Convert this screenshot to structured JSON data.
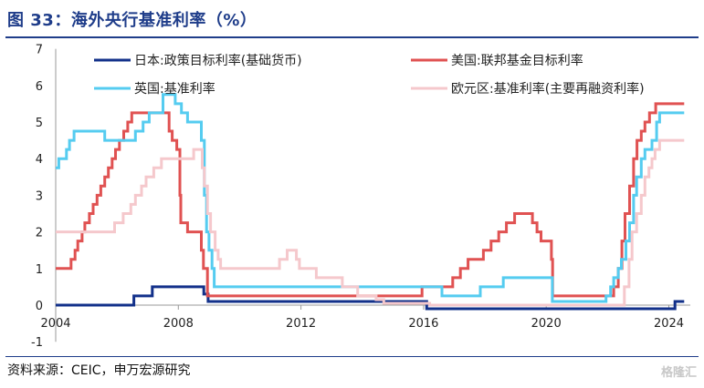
{
  "header": {
    "title": "图 33：海外央行基准利率（%）"
  },
  "footer": {
    "source": "资料来源：CEIC，申万宏源研究",
    "watermark": "格隆汇"
  },
  "chart_data": {
    "type": "line",
    "xlim": [
      2004,
      2024.7
    ],
    "ylim": [
      -1,
      7
    ],
    "x_ticks": [
      "2004",
      "2008",
      "2012",
      "2016",
      "2020",
      "2024"
    ],
    "y_ticks": [
      "-1",
      "0",
      "1",
      "2",
      "3",
      "4",
      "5",
      "6",
      "7"
    ],
    "grid": false,
    "legend": "top",
    "series": [
      {
        "name": "日本:政策目标利率(基础货币)",
        "color": "#12308a",
        "points": [
          [
            2004.0,
            0
          ],
          [
            2006.55,
            0
          ],
          [
            2006.55,
            0.25
          ],
          [
            2007.15,
            0.25
          ],
          [
            2007.15,
            0.5
          ],
          [
            2008.83,
            0.5
          ],
          [
            2008.83,
            0.3
          ],
          [
            2008.97,
            0.3
          ],
          [
            2008.97,
            0.1
          ],
          [
            2016.1,
            0.1
          ],
          [
            2016.1,
            -0.1
          ],
          [
            2024.2,
            -0.1
          ],
          [
            2024.2,
            0.1
          ],
          [
            2024.5,
            0.1
          ]
        ]
      },
      {
        "name": "美国:联邦基金目标利率",
        "color": "#e05252",
        "points": [
          [
            2004.0,
            1
          ],
          [
            2004.5,
            1
          ],
          [
            2004.5,
            1.25
          ],
          [
            2004.63,
            1.25
          ],
          [
            2004.63,
            1.5
          ],
          [
            2004.72,
            1.5
          ],
          [
            2004.72,
            1.75
          ],
          [
            2004.86,
            1.75
          ],
          [
            2004.86,
            2
          ],
          [
            2004.95,
            2
          ],
          [
            2004.95,
            2.25
          ],
          [
            2005.1,
            2.25
          ],
          [
            2005.1,
            2.5
          ],
          [
            2005.22,
            2.5
          ],
          [
            2005.22,
            2.75
          ],
          [
            2005.35,
            2.75
          ],
          [
            2005.35,
            3
          ],
          [
            2005.47,
            3
          ],
          [
            2005.47,
            3.25
          ],
          [
            2005.6,
            3.25
          ],
          [
            2005.6,
            3.5
          ],
          [
            2005.72,
            3.5
          ],
          [
            2005.72,
            3.75
          ],
          [
            2005.84,
            3.75
          ],
          [
            2005.84,
            4
          ],
          [
            2005.95,
            4
          ],
          [
            2005.95,
            4.25
          ],
          [
            2006.08,
            4.25
          ],
          [
            2006.08,
            4.5
          ],
          [
            2006.22,
            4.5
          ],
          [
            2006.22,
            4.75
          ],
          [
            2006.35,
            4.75
          ],
          [
            2006.35,
            5
          ],
          [
            2006.48,
            5
          ],
          [
            2006.48,
            5.25
          ],
          [
            2007.7,
            5.25
          ],
          [
            2007.7,
            4.75
          ],
          [
            2007.8,
            4.75
          ],
          [
            2007.8,
            4.5
          ],
          [
            2007.95,
            4.5
          ],
          [
            2007.95,
            4.25
          ],
          [
            2008.05,
            4.25
          ],
          [
            2008.05,
            3
          ],
          [
            2008.08,
            3
          ],
          [
            2008.08,
            2.25
          ],
          [
            2008.3,
            2.25
          ],
          [
            2008.3,
            2
          ],
          [
            2008.75,
            2
          ],
          [
            2008.75,
            1.5
          ],
          [
            2008.82,
            1.5
          ],
          [
            2008.82,
            1
          ],
          [
            2008.95,
            1
          ],
          [
            2008.95,
            0.25
          ],
          [
            2015.95,
            0.25
          ],
          [
            2015.95,
            0.5
          ],
          [
            2016.95,
            0.5
          ],
          [
            2016.95,
            0.75
          ],
          [
            2017.2,
            0.75
          ],
          [
            2017.2,
            1
          ],
          [
            2017.45,
            1
          ],
          [
            2017.45,
            1.25
          ],
          [
            2017.95,
            1.25
          ],
          [
            2017.95,
            1.5
          ],
          [
            2018.2,
            1.5
          ],
          [
            2018.2,
            1.75
          ],
          [
            2018.45,
            1.75
          ],
          [
            2018.45,
            2
          ],
          [
            2018.7,
            2
          ],
          [
            2018.7,
            2.25
          ],
          [
            2018.97,
            2.25
          ],
          [
            2018.97,
            2.5
          ],
          [
            2019.55,
            2.5
          ],
          [
            2019.55,
            2.25
          ],
          [
            2019.7,
            2.25
          ],
          [
            2019.7,
            2
          ],
          [
            2019.83,
            2
          ],
          [
            2019.83,
            1.75
          ],
          [
            2020.17,
            1.75
          ],
          [
            2020.17,
            1.25
          ],
          [
            2020.21,
            1.25
          ],
          [
            2020.21,
            0.25
          ],
          [
            2022.2,
            0.25
          ],
          [
            2022.2,
            0.5
          ],
          [
            2022.35,
            0.5
          ],
          [
            2022.35,
            1
          ],
          [
            2022.47,
            1
          ],
          [
            2022.47,
            1.75
          ],
          [
            2022.57,
            1.75
          ],
          [
            2022.57,
            2.5
          ],
          [
            2022.72,
            2.5
          ],
          [
            2022.72,
            3.25
          ],
          [
            2022.85,
            3.25
          ],
          [
            2022.85,
            4
          ],
          [
            2022.96,
            4
          ],
          [
            2022.96,
            4.5
          ],
          [
            2023.1,
            4.5
          ],
          [
            2023.1,
            4.75
          ],
          [
            2023.22,
            4.75
          ],
          [
            2023.22,
            5
          ],
          [
            2023.37,
            5
          ],
          [
            2023.37,
            5.25
          ],
          [
            2023.57,
            5.25
          ],
          [
            2023.57,
            5.5
          ],
          [
            2024.5,
            5.5
          ]
        ]
      },
      {
        "name": "英国:基准利率",
        "color": "#55ccf0",
        "points": [
          [
            2004.0,
            3.75
          ],
          [
            2004.1,
            3.75
          ],
          [
            2004.1,
            4
          ],
          [
            2004.35,
            4
          ],
          [
            2004.35,
            4.25
          ],
          [
            2004.45,
            4.25
          ],
          [
            2004.45,
            4.5
          ],
          [
            2004.6,
            4.5
          ],
          [
            2004.6,
            4.75
          ],
          [
            2005.6,
            4.75
          ],
          [
            2005.6,
            4.5
          ],
          [
            2006.6,
            4.5
          ],
          [
            2006.6,
            4.75
          ],
          [
            2006.85,
            4.75
          ],
          [
            2006.85,
            5
          ],
          [
            2007.05,
            5
          ],
          [
            2007.05,
            5.25
          ],
          [
            2007.5,
            5.25
          ],
          [
            2007.5,
            5.75
          ],
          [
            2007.9,
            5.75
          ],
          [
            2007.9,
            5.5
          ],
          [
            2008.1,
            5.5
          ],
          [
            2008.1,
            5.25
          ],
          [
            2008.3,
            5.25
          ],
          [
            2008.3,
            5
          ],
          [
            2008.75,
            5
          ],
          [
            2008.75,
            4.5
          ],
          [
            2008.85,
            4.5
          ],
          [
            2008.85,
            3
          ],
          [
            2008.92,
            3
          ],
          [
            2008.92,
            2
          ],
          [
            2009.0,
            2
          ],
          [
            2009.0,
            1.5
          ],
          [
            2009.1,
            1.5
          ],
          [
            2009.1,
            1
          ],
          [
            2009.17,
            1
          ],
          [
            2009.17,
            0.5
          ],
          [
            2016.6,
            0.5
          ],
          [
            2016.6,
            0.25
          ],
          [
            2017.85,
            0.25
          ],
          [
            2017.85,
            0.5
          ],
          [
            2018.6,
            0.5
          ],
          [
            2018.6,
            0.75
          ],
          [
            2020.2,
            0.75
          ],
          [
            2020.2,
            0.1
          ],
          [
            2021.95,
            0.1
          ],
          [
            2021.95,
            0.25
          ],
          [
            2022.1,
            0.25
          ],
          [
            2022.1,
            0.5
          ],
          [
            2022.2,
            0.5
          ],
          [
            2022.2,
            0.75
          ],
          [
            2022.35,
            0.75
          ],
          [
            2022.35,
            1
          ],
          [
            2022.45,
            1
          ],
          [
            2022.45,
            1.25
          ],
          [
            2022.6,
            1.25
          ],
          [
            2022.6,
            1.75
          ],
          [
            2022.72,
            1.75
          ],
          [
            2022.72,
            2.25
          ],
          [
            2022.85,
            2.25
          ],
          [
            2022.85,
            3
          ],
          [
            2022.95,
            3
          ],
          [
            2022.95,
            3.5
          ],
          [
            2023.1,
            3.5
          ],
          [
            2023.1,
            4
          ],
          [
            2023.22,
            4
          ],
          [
            2023.22,
            4.25
          ],
          [
            2023.45,
            4.25
          ],
          [
            2023.45,
            4.5
          ],
          [
            2023.6,
            4.5
          ],
          [
            2023.6,
            5
          ],
          [
            2023.7,
            5
          ],
          [
            2023.7,
            5.25
          ],
          [
            2024.5,
            5.25
          ]
        ]
      },
      {
        "name": "欧元区:基准利率(主要再融资利率)",
        "color": "#f5c8cc",
        "points": [
          [
            2004.0,
            2
          ],
          [
            2005.92,
            2
          ],
          [
            2005.92,
            2.25
          ],
          [
            2006.2,
            2.25
          ],
          [
            2006.2,
            2.5
          ],
          [
            2006.45,
            2.5
          ],
          [
            2006.45,
            2.75
          ],
          [
            2006.6,
            2.75
          ],
          [
            2006.6,
            3
          ],
          [
            2006.8,
            3
          ],
          [
            2006.8,
            3.25
          ],
          [
            2006.95,
            3.25
          ],
          [
            2006.95,
            3.5
          ],
          [
            2007.2,
            3.5
          ],
          [
            2007.2,
            3.75
          ],
          [
            2007.45,
            3.75
          ],
          [
            2007.45,
            4
          ],
          [
            2008.5,
            4
          ],
          [
            2008.5,
            4.25
          ],
          [
            2008.78,
            4.25
          ],
          [
            2008.78,
            3.75
          ],
          [
            2008.85,
            3.75
          ],
          [
            2008.85,
            3.25
          ],
          [
            2008.95,
            3.25
          ],
          [
            2008.95,
            2.5
          ],
          [
            2009.05,
            2.5
          ],
          [
            2009.05,
            2
          ],
          [
            2009.2,
            2
          ],
          [
            2009.2,
            1.5
          ],
          [
            2009.3,
            1.5
          ],
          [
            2009.3,
            1.25
          ],
          [
            2009.38,
            1.25
          ],
          [
            2009.38,
            1
          ],
          [
            2011.3,
            1
          ],
          [
            2011.3,
            1.25
          ],
          [
            2011.55,
            1.25
          ],
          [
            2011.55,
            1.5
          ],
          [
            2011.85,
            1.5
          ],
          [
            2011.85,
            1.25
          ],
          [
            2011.95,
            1.25
          ],
          [
            2011.95,
            1
          ],
          [
            2012.5,
            1
          ],
          [
            2012.5,
            0.75
          ],
          [
            2013.35,
            0.75
          ],
          [
            2013.35,
            0.5
          ],
          [
            2013.85,
            0.5
          ],
          [
            2013.85,
            0.25
          ],
          [
            2014.45,
            0.25
          ],
          [
            2014.45,
            0.15
          ],
          [
            2014.7,
            0.15
          ],
          [
            2014.7,
            0.05
          ],
          [
            2016.2,
            0.05
          ],
          [
            2016.2,
            0
          ],
          [
            2022.55,
            0
          ],
          [
            2022.55,
            0.5
          ],
          [
            2022.7,
            0.5
          ],
          [
            2022.7,
            1.25
          ],
          [
            2022.8,
            1.25
          ],
          [
            2022.8,
            2
          ],
          [
            2022.95,
            2
          ],
          [
            2022.95,
            2.5
          ],
          [
            2023.1,
            2.5
          ],
          [
            2023.1,
            3
          ],
          [
            2023.22,
            3
          ],
          [
            2023.22,
            3.5
          ],
          [
            2023.35,
            3.5
          ],
          [
            2023.35,
            3.75
          ],
          [
            2023.45,
            3.75
          ],
          [
            2023.45,
            4
          ],
          [
            2023.55,
            4
          ],
          [
            2023.55,
            4.25
          ],
          [
            2023.7,
            4.25
          ],
          [
            2023.7,
            4.5
          ],
          [
            2024.5,
            4.5
          ]
        ]
      }
    ]
  }
}
